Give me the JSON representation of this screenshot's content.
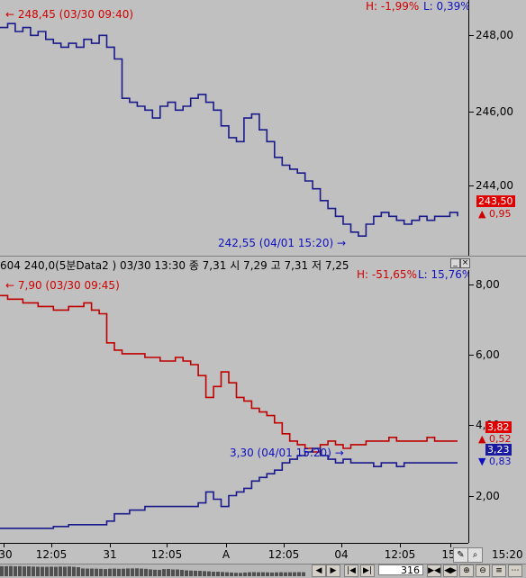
{
  "top_chart": {
    "start_label": "248,45 (03/30 09:40)",
    "end_label": "242,55 (04/01 15:20)",
    "high_pct": "H: -1,99%",
    "low_pct": "L: 0,39%",
    "current_price": "243,50",
    "change": "0,95",
    "y_ticks": [
      "248,00",
      "246,00",
      "244,00"
    ],
    "series_color": "#1a1a8c"
  },
  "sub_header": {
    "text": "604 240,0(5분Data2 ) 03/30 13:30   종 7,31   시 7,29  고 7,31  저 7,25"
  },
  "bottom_chart": {
    "red_start_label": "7,90 (03/30 09:45)",
    "blue_end_label": "3,30 (04/01 15:20)",
    "high_pct": "H: -51,65%",
    "low_pct": "L: 15,76%",
    "red_current": "3,82",
    "red_change": "0,52",
    "blue_current": "3,23",
    "blue_change": "0,83",
    "y_ticks": [
      "8,00",
      "6,00",
      "4,00",
      "2,00"
    ],
    "red_color": "#c00000",
    "blue_color": "#1a1a8c"
  },
  "x_axis": {
    "labels": [
      "30",
      "12:05",
      "31",
      "12:05",
      "A",
      "12:05",
      "04",
      "12:05",
      "15"
    ]
  },
  "status": {
    "count": "316",
    "time": "15:20"
  },
  "chart_data": [
    {
      "type": "line",
      "series": [
        {
          "values": [
            248.3,
            248.4,
            248.2,
            248.3,
            248.1,
            248.2,
            248.0,
            247.9,
            247.8,
            247.9,
            247.8,
            248.0,
            247.9,
            248.1,
            247.8,
            247.5,
            246.5,
            246.4,
            246.3,
            246.2,
            246.0,
            246.3,
            246.4,
            246.2,
            246.3,
            246.5,
            246.6,
            246.4,
            246.2,
            245.8,
            245.5,
            245.4,
            246.0,
            246.1,
            245.7,
            245.4,
            245.0,
            244.8,
            244.7,
            244.6,
            244.4,
            244.2,
            243.9,
            243.7,
            243.5,
            243.3,
            243.1,
            243.0,
            243.3,
            243.5,
            243.6,
            243.5,
            243.4,
            243.3,
            243.4,
            243.5,
            243.4,
            243.5,
            243.5,
            243.6,
            243.5
          ]
        }
      ],
      "ylim": [
        242.5,
        249
      ]
    },
    {
      "type": "line",
      "series": [
        {
          "values": [
            7.8,
            7.7,
            7.7,
            7.6,
            7.6,
            7.5,
            7.5,
            7.4,
            7.4,
            7.5,
            7.5,
            7.6,
            7.4,
            7.3,
            6.5,
            6.3,
            6.2,
            6.2,
            6.2,
            6.1,
            6.1,
            6.0,
            6.0,
            6.1,
            6.0,
            5.9,
            5.6,
            5.0,
            5.3,
            5.7,
            5.4,
            5.0,
            4.9,
            4.7,
            4.6,
            4.5,
            4.3,
            4.0,
            3.8,
            3.7,
            3.6,
            3.5,
            3.7,
            3.8,
            3.7,
            3.6,
            3.7,
            3.7,
            3.8,
            3.8,
            3.8,
            3.9,
            3.8,
            3.8,
            3.8,
            3.8,
            3.9,
            3.8,
            3.8,
            3.8,
            3.8
          ]
        },
        {
          "values": [
            1.4,
            1.4,
            1.4,
            1.4,
            1.4,
            1.4,
            1.4,
            1.45,
            1.45,
            1.5,
            1.5,
            1.5,
            1.5,
            1.5,
            1.6,
            1.8,
            1.8,
            1.9,
            1.9,
            2.0,
            2.0,
            2.0,
            2.0,
            2.0,
            2.0,
            2.0,
            2.1,
            2.4,
            2.2,
            2.0,
            2.3,
            2.4,
            2.5,
            2.7,
            2.8,
            2.9,
            3.0,
            3.2,
            3.3,
            3.4,
            3.5,
            3.6,
            3.4,
            3.3,
            3.2,
            3.3,
            3.2,
            3.2,
            3.2,
            3.1,
            3.2,
            3.2,
            3.1,
            3.2,
            3.2,
            3.2,
            3.2,
            3.2,
            3.2,
            3.2,
            3.2
          ]
        }
      ],
      "ylim": [
        1.0,
        8.5
      ]
    }
  ]
}
